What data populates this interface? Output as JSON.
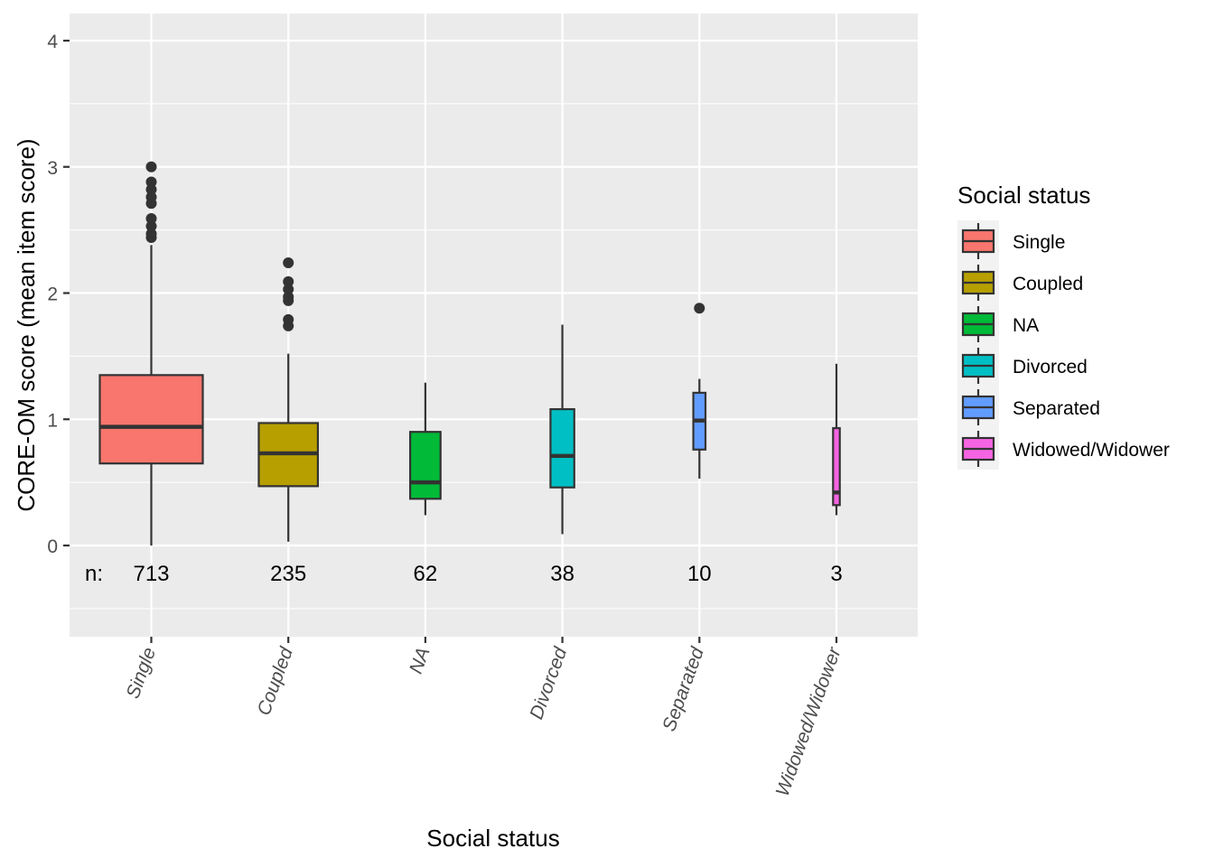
{
  "chart_data": {
    "type": "boxplot",
    "xlabel": "Social status",
    "ylabel": "CORE-OM score (mean item score)",
    "ylim": [
      -0.72,
      4.22
    ],
    "yticks": [
      0,
      1,
      2,
      3,
      4
    ],
    "grid": true,
    "legend": {
      "title": "Social status",
      "position": "right"
    },
    "n_prefix": "n:",
    "categories": [
      "Single",
      "Coupled",
      "NA",
      "Divorced",
      "Separated",
      "Widowed/Widower"
    ],
    "series": [
      {
        "name": "Single",
        "color": "#F8766D",
        "n": 713,
        "width": 1.0,
        "lower_whisker": 0.0,
        "q1": 0.65,
        "median": 0.94,
        "q3": 1.35,
        "upper_whisker": 2.38,
        "outliers": [
          2.44,
          2.47,
          2.53,
          2.59,
          2.71,
          2.76,
          2.82,
          2.88,
          3.0
        ]
      },
      {
        "name": "Coupled",
        "color": "#B79F00",
        "n": 235,
        "width": 0.574,
        "lower_whisker": 0.03,
        "q1": 0.47,
        "median": 0.73,
        "q3": 0.97,
        "upper_whisker": 1.52,
        "outliers": [
          1.74,
          1.79,
          1.94,
          1.97,
          2.03,
          2.09,
          2.24
        ]
      },
      {
        "name": "NA",
        "color": "#00BA38",
        "n": 62,
        "width": 0.295,
        "lower_whisker": 0.24,
        "q1": 0.37,
        "median": 0.5,
        "q3": 0.9,
        "upper_whisker": 1.29,
        "outliers": []
      },
      {
        "name": "Divorced",
        "color": "#00BFC4",
        "n": 38,
        "width": 0.231,
        "lower_whisker": 0.09,
        "q1": 0.46,
        "median": 0.71,
        "q3": 1.08,
        "upper_whisker": 1.75,
        "outliers": []
      },
      {
        "name": "Separated",
        "color": "#619CFF",
        "n": 10,
        "width": 0.118,
        "lower_whisker": 0.53,
        "q1": 0.76,
        "median": 0.99,
        "q3": 1.21,
        "upper_whisker": 1.32,
        "outliers": [
          1.88
        ]
      },
      {
        "name": "Widowed/Widower",
        "color": "#F564E3",
        "n": 3,
        "width": 0.065,
        "lower_whisker": 0.24,
        "q1": 0.32,
        "median": 0.42,
        "q3": 0.93,
        "upper_whisker": 1.44,
        "outliers": []
      }
    ]
  }
}
